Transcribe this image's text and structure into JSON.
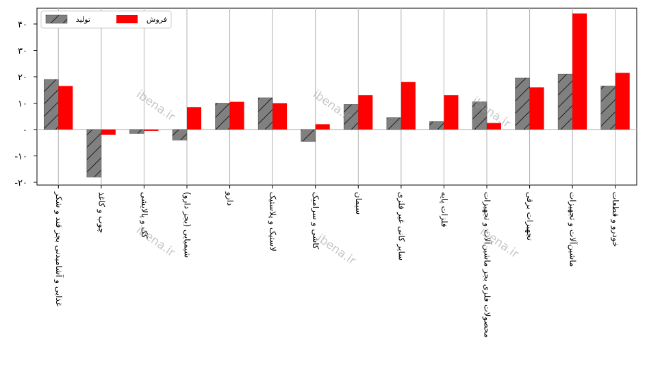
{
  "chart_data": {
    "type": "bar",
    "categories": [
      "غذایی و آشامیدنی بجز قند و شکر",
      "چوب و کاغذ",
      "کک و پالایشی",
      "شیمیایی (بجز دارو)",
      "دارو",
      "لاستیک و پلاستیک",
      "کاشی و سرامیک",
      "سیمان",
      "سایر کانی غیر فلزی",
      "فلزات پایه",
      "محصولات فلزی بجز ماشین‌آلات و تجهیزات",
      "تجهیزات برقی",
      "ماشین‌آلات و تجهیزات",
      "خودرو و قطعات"
    ],
    "series": [
      {
        "name": "تولید",
        "color": "#808080",
        "pattern": "hatch",
        "values": [
          19,
          -18,
          -1.5,
          -4,
          10,
          12,
          -4.5,
          9.5,
          4.5,
          3,
          10.5,
          19.5,
          21,
          16.5
        ]
      },
      {
        "name": "فروش",
        "color": "#ff0000",
        "values": [
          16.5,
          -2,
          -0.5,
          8.5,
          10.5,
          10,
          2,
          13,
          18,
          13,
          2.5,
          16,
          44,
          21.5
        ]
      }
    ],
    "yticks": [
      -20,
      -10,
      0,
      10,
      20,
      30,
      40
    ],
    "ytick_labels": [
      "-۲۰",
      "-۱۰",
      "۰",
      "۱۰",
      "۲۰",
      "۳۰",
      "۴۰"
    ],
    "ylim": [
      -22,
      44.5
    ],
    "grid": "vertical",
    "legend": "top-left"
  },
  "watermarks": [
    "ibena.ir",
    "ibena.ir",
    "ibena.ir",
    "ibena.ir",
    "ibena.ir",
    "ibena.ir",
    "ibena.ir"
  ]
}
